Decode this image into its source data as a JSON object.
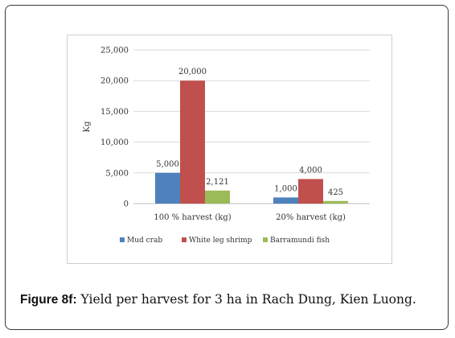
{
  "chart_data": {
    "type": "bar",
    "categories": [
      "100 % harvest (kg)",
      "20% harvest (kg)"
    ],
    "series": [
      {
        "name": "Mud crab",
        "values": [
          5000,
          1000
        ],
        "labels": [
          "5,000",
          "1,000"
        ],
        "color": "#4f81bd"
      },
      {
        "name": "White leg shrimp",
        "values": [
          20000,
          4000
        ],
        "labels": [
          "20,000",
          "4,000"
        ],
        "color": "#c0504d"
      },
      {
        "name": "Barramundi fish",
        "values": [
          2121,
          425
        ],
        "labels": [
          "2,121",
          "425"
        ],
        "color": "#9bbb59"
      }
    ],
    "ylabel": "Kg",
    "ylim": [
      0,
      25000
    ],
    "yticks": [
      0,
      5000,
      10000,
      15000,
      20000,
      25000
    ],
    "ytick_labels": [
      "0",
      "5,000",
      "10,000",
      "15,000",
      "20,000",
      "25,000"
    ],
    "grid": true,
    "legend_position": "bottom"
  },
  "caption": {
    "label": "Figure 8f:",
    "text": " Yield per harvest for 3 ha in Rach Dung, Kien Luong."
  }
}
